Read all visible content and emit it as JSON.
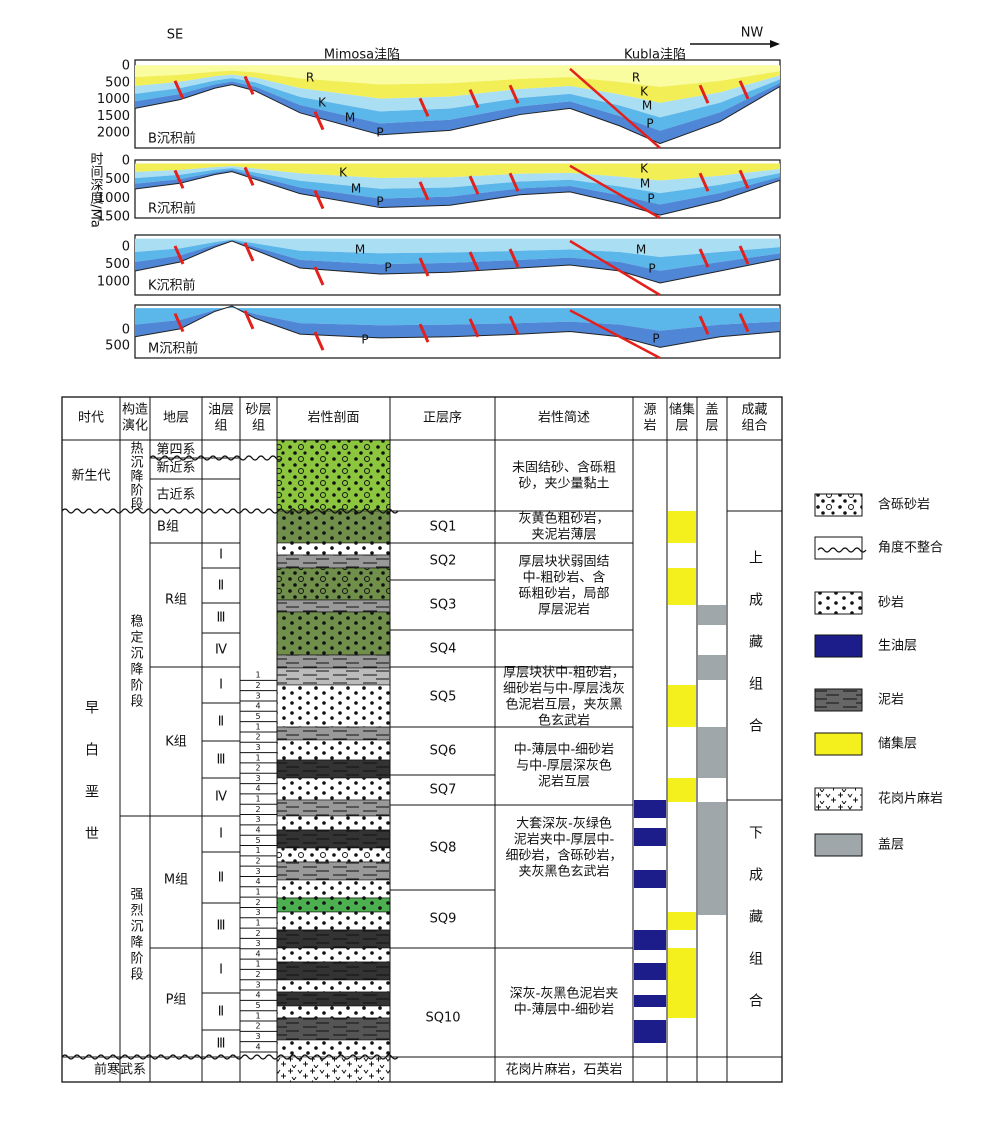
{
  "section": {
    "direction_left": "SE",
    "direction_right": "NW",
    "sag_left": "Mimosa洼陷",
    "sag_right": "Kubla洼陷",
    "axis_label": "时间深度/Ma",
    "panels": [
      {
        "label": "B沉积前",
        "depth_ticks": [
          0,
          500,
          1000,
          1500,
          2000
        ],
        "layers": [
          "R",
          "K",
          "M",
          "P",
          "R",
          "K",
          "M",
          "P"
        ]
      },
      {
        "label": "R沉积前",
        "depth_ticks": [
          0,
          500,
          1000,
          1500
        ],
        "layers": [
          "K",
          "M",
          "P",
          "K",
          "M",
          "P"
        ]
      },
      {
        "label": "K沉积前",
        "depth_ticks": [
          0,
          500,
          1000
        ],
        "layers": [
          "M",
          "P",
          "M",
          "P"
        ]
      },
      {
        "label": "M沉积前",
        "depth_ticks": [
          0,
          500
        ],
        "layers": [
          "P",
          "P"
        ]
      }
    ]
  },
  "table": {
    "headers": [
      [
        "时代"
      ],
      [
        "构造",
        "演化"
      ],
      [
        "地层"
      ],
      [
        "油层",
        "组"
      ],
      [
        "砂层",
        "组"
      ],
      [
        "岩性剖面"
      ],
      [
        "正层序"
      ],
      [
        "岩性简述"
      ],
      [
        "源",
        "岩"
      ],
      [
        "储集",
        "层"
      ],
      [
        "盖",
        "层"
      ],
      [
        "成藏",
        "组合"
      ]
    ],
    "eras": [
      "新生代",
      "早白垩世"
    ],
    "tectonics": [
      "热沉降阶段",
      "稳定沉降阶段",
      "强烈沉降阶段"
    ],
    "formations": [
      "第四系",
      "新近系",
      "古近系",
      "B组",
      "R组",
      "K组",
      "M组",
      "P组"
    ],
    "basement": "前寒武系",
    "oil_groups": [
      "Ⅰ",
      "Ⅱ",
      "Ⅲ",
      "Ⅳ",
      "Ⅰ",
      "Ⅱ",
      "Ⅲ",
      "Ⅳ",
      "Ⅰ",
      "Ⅱ",
      "Ⅲ",
      "Ⅰ",
      "Ⅱ",
      "Ⅲ"
    ],
    "sand_groups": [
      "1",
      "2",
      "3",
      "4",
      "5",
      "1",
      "2",
      "3",
      "1",
      "2",
      "3",
      "4",
      "1",
      "2",
      "3",
      "4",
      "5",
      "1",
      "2",
      "3",
      "4",
      "1",
      "2",
      "3",
      "1",
      "2",
      "3",
      "4",
      "1",
      "2",
      "3",
      "4",
      "5",
      "1",
      "2",
      "3",
      "4"
    ],
    "sequences": [
      "SQ1",
      "SQ2",
      "SQ3",
      "SQ4",
      "SQ5",
      "SQ6",
      "SQ7",
      "SQ8",
      "SQ9",
      "SQ10"
    ],
    "descriptions": [
      [
        "未固结砂、含砾粗",
        "砂，夹少量黏土"
      ],
      [
        "灰黄色粗砂岩，",
        "夹泥岩薄层"
      ],
      [
        "厚层块状弱固结",
        "中-粗砂岩、含",
        "砾粗砂岩，局部",
        "厚层泥岩"
      ],
      [
        "厚层块状中-粗砂岩，",
        "细砂岩与中-厚层浅灰",
        "色泥岩互层，夹灰黑",
        "色玄武岩"
      ],
      [
        "中-薄层中-细砂岩",
        "与中-厚层深灰色",
        "泥岩互层"
      ],
      [
        "大套深灰-灰绿色",
        "泥岩夹中-厚层中-",
        "细砂岩，含砾砂岩，",
        "夹灰黑色玄武岩"
      ],
      [
        "深灰-灰黑色泥岩夹",
        "中-薄层中-细砂岩"
      ],
      [
        "花岗片麻岩，石英岩"
      ]
    ],
    "plays": [
      "上成藏组合",
      "下成藏组合"
    ]
  },
  "legend": [
    "含砾砂岩",
    "角度不整合",
    "砂岩",
    "生油层",
    "泥岩",
    "储集层",
    "花岗片麻岩",
    "盖层"
  ]
}
